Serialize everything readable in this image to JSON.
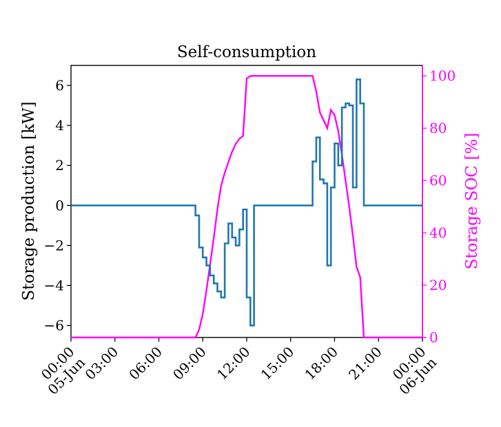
{
  "chart_data": {
    "type": "line",
    "title": "Self-consumption",
    "ylabel": "Storage production [kW]",
    "ylabel_right": "Storage SOC [%]",
    "x_ticks": [
      "00:00\n05-Jun",
      "03:00",
      "06:00",
      "09:00",
      "12:00",
      "15:00",
      "18:00",
      "21:00",
      "00:00\n06-Jun"
    ],
    "x_range_hours": [
      0,
      24
    ],
    "ylim": [
      -6.6,
      7.0
    ],
    "ylim_right": [
      0,
      104
    ],
    "y_ticks": [
      -6,
      -4,
      -2,
      0,
      2,
      4,
      6
    ],
    "y_ticks_right": [
      0,
      20,
      40,
      60,
      80,
      100
    ],
    "grid": false,
    "colors": {
      "production": "#1f77b4",
      "soc": "#ff00ff"
    },
    "series": [
      {
        "axis": "left",
        "step": true,
        "x": [
          0,
          8.5,
          8.75,
          9.0,
          9.25,
          9.5,
          9.75,
          10.0,
          10.25,
          10.5,
          10.75,
          11.0,
          11.25,
          11.5,
          11.75,
          12.0,
          12.25,
          12.5,
          16.5,
          16.75,
          17.0,
          17.25,
          17.5,
          17.75,
          18.0,
          18.25,
          18.5,
          18.75,
          19.0,
          19.25,
          19.5,
          19.75,
          20.0,
          24.0
        ],
        "values": [
          0,
          -0.5,
          -2.1,
          -2.6,
          -3.0,
          -3.5,
          -3.9,
          -4.3,
          -4.6,
          -1.9,
          -0.9,
          -1.6,
          -2.0,
          -1.2,
          -0.2,
          -4.6,
          -6.0,
          0,
          2.2,
          3.4,
          1.3,
          1.1,
          -3.0,
          0.9,
          3.1,
          2.0,
          4.9,
          5.1,
          5.0,
          0.9,
          6.3,
          5.1,
          0,
          0
        ]
      },
      {
        "axis": "right",
        "step": false,
        "x": [
          0,
          8.5,
          8.75,
          9.0,
          9.25,
          9.5,
          9.75,
          10.0,
          10.25,
          10.5,
          10.75,
          11.0,
          11.25,
          11.5,
          11.75,
          12.0,
          12.25,
          16.5,
          16.75,
          17.0,
          17.25,
          17.5,
          17.75,
          18.0,
          18.25,
          18.5,
          18.75,
          19.0,
          19.25,
          19.5,
          19.75,
          20.0,
          24.0
        ],
        "values": [
          0,
          0,
          3,
          9,
          18,
          28,
          38,
          49,
          58,
          63,
          67,
          71,
          74,
          76,
          77,
          99,
          100,
          100,
          94,
          86,
          83,
          80,
          87,
          85,
          79,
          70,
          60,
          50,
          39,
          27,
          23,
          0,
          0
        ]
      }
    ]
  }
}
